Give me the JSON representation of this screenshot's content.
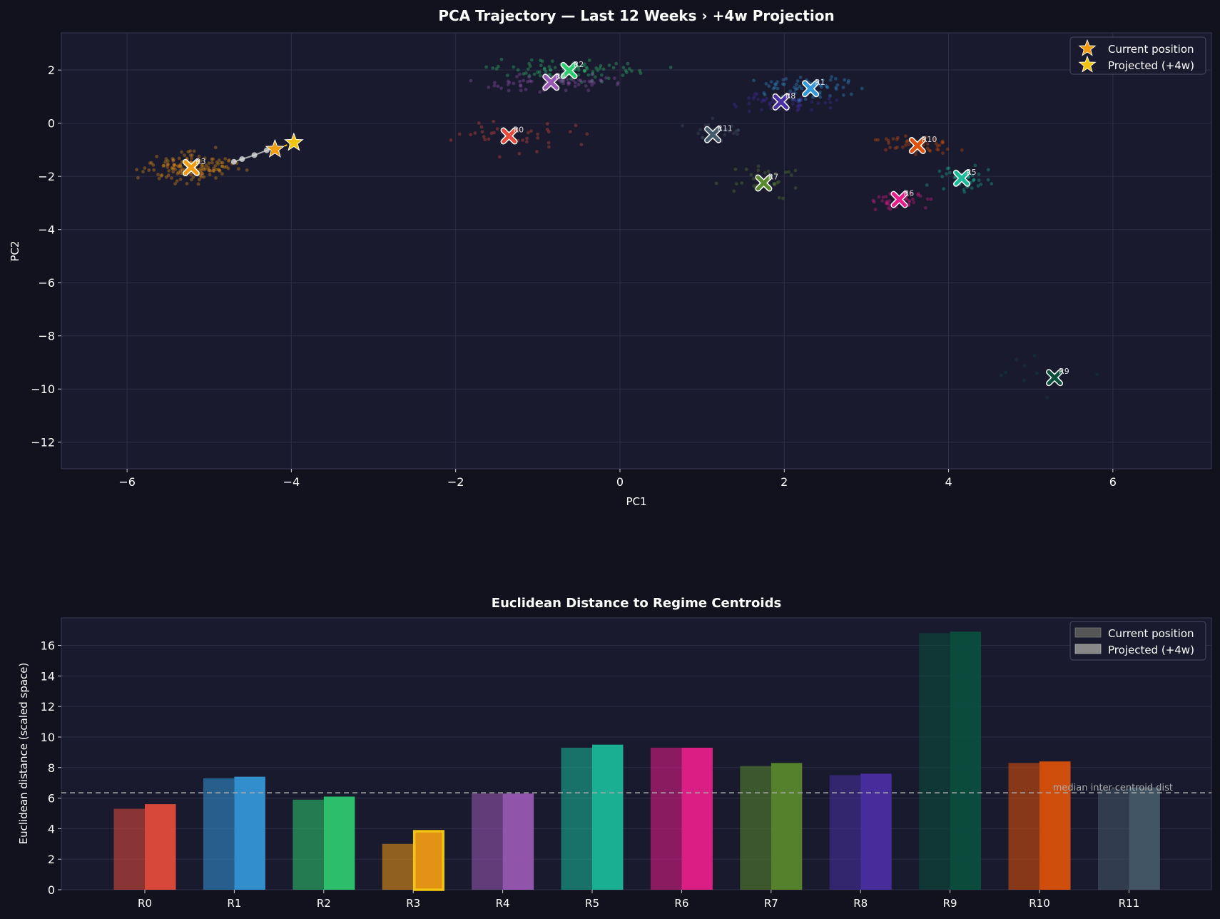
{
  "colors": {
    "figure_bg": "#12121e",
    "axes_bg": "#1a1a2e",
    "grid": "#2c2c44",
    "spine": "#3a3a55",
    "text": "#ffffff",
    "tick_text": "#ffffff",
    "star_current": "#f39c12",
    "star_projected": "#f1c40f",
    "trajectory": "#cccccc",
    "median_line": "#aaaaaa"
  },
  "scatter": {
    "title": "PCA Trajectory — Last 12 Weeks  ›  +4w Projection",
    "xlabel": "PC1",
    "ylabel": "PC2",
    "legend": {
      "current_label": "Current position",
      "projected_label": "Projected (+4w)",
      "placement": "top-right"
    }
  },
  "bar": {
    "title": "Euclidean Distance to Regime Centroids",
    "ylabel": "Euclidean distance (scaled space)",
    "median_label": "median inter-centroid dist",
    "legend": {
      "current_label": "Current position",
      "projected_label": "Projected (+4w)",
      "placement": "top-right"
    }
  },
  "chart_data": [
    {
      "type": "scatter",
      "title": "PCA Trajectory — Last 12 Weeks  ›  +4w Projection",
      "xlabel": "PC1",
      "ylabel": "PC2",
      "xlim": [
        -6.8,
        7.2
      ],
      "ylim": [
        -13.0,
        3.4
      ],
      "xticks": [
        -6,
        -4,
        -2,
        0,
        2,
        4,
        6
      ],
      "yticks": [
        -12,
        -10,
        -8,
        -6,
        -4,
        -2,
        0,
        2
      ],
      "grid": true,
      "centroids": [
        {
          "label": "R0",
          "x": -1.35,
          "y": -0.48,
          "color": "#e74c3c"
        },
        {
          "label": "R1",
          "x": 2.32,
          "y": 1.3,
          "color": "#3498db"
        },
        {
          "label": "R2",
          "x": -0.62,
          "y": 1.98,
          "color": "#2ecc71"
        },
        {
          "label": "R3",
          "x": -5.22,
          "y": -1.67,
          "color": "#f39c12"
        },
        {
          "label": "R4",
          "x": -0.84,
          "y": 1.54,
          "color": "#9b59b6"
        },
        {
          "label": "R5",
          "x": 4.16,
          "y": -2.07,
          "color": "#1abc9c"
        },
        {
          "label": "R6",
          "x": 3.4,
          "y": -2.87,
          "color": "#e91e8c"
        },
        {
          "label": "R7",
          "x": 1.75,
          "y": -2.25,
          "color": "#5a8a2e"
        },
        {
          "label": "R8",
          "x": 1.96,
          "y": 0.8,
          "color": "#4b2fa6"
        },
        {
          "label": "R9",
          "x": 5.29,
          "y": -9.57,
          "color": "#0a4f3e"
        },
        {
          "label": "R10",
          "x": 3.62,
          "y": -0.84,
          "color": "#e0520a"
        },
        {
          "label": "R11",
          "x": 1.13,
          "y": -0.43,
          "color": "#455a6a"
        }
      ],
      "trajectory": {
        "x": [
          -4.7,
          -4.6,
          -4.45,
          -4.3,
          -4.2
        ],
        "y": [
          -1.45,
          -1.35,
          -1.2,
          -1.02,
          -0.9
        ]
      },
      "current": {
        "x": -4.2,
        "y": -0.98
      },
      "projected": {
        "x": -3.97,
        "y": -0.73
      },
      "legend": [
        "Current position",
        "Projected (+4w)"
      ]
    },
    {
      "type": "bar",
      "title": "Euclidean Distance to Regime Centroids",
      "ylabel": "Euclidean distance (scaled space)",
      "categories": [
        "R0",
        "R1",
        "R2",
        "R3",
        "R4",
        "R5",
        "R6",
        "R7",
        "R8",
        "R9",
        "R10",
        "R11"
      ],
      "series": [
        {
          "name": "Current position",
          "values": [
            5.3,
            7.3,
            5.9,
            3.0,
            6.3,
            9.3,
            9.3,
            8.1,
            7.5,
            16.8,
            8.3,
            6.6
          ]
        },
        {
          "name": "Projected (+4w)",
          "values": [
            5.6,
            7.4,
            6.1,
            3.9,
            6.3,
            9.5,
            9.3,
            8.3,
            7.6,
            16.9,
            8.4,
            6.7
          ]
        }
      ],
      "bar_colors": [
        "#e74c3c",
        "#3498db",
        "#2ecc71",
        "#f39c12",
        "#9b59b6",
        "#1abc9c",
        "#e91e8c",
        "#5a8a2e",
        "#4b2fa6",
        "#0a4f3e",
        "#e0520a",
        "#455a6a"
      ],
      "highlight_category": "R3",
      "highlight_color": "#f1c40f",
      "median_inter_centroid": 6.35,
      "median_label": "median inter-centroid dist",
      "ylim": [
        0,
        17.8
      ],
      "yticks": [
        0,
        2,
        4,
        6,
        8,
        10,
        12,
        14,
        16
      ],
      "grid": true,
      "legend": [
        "Current position",
        "Projected (+4w)"
      ]
    }
  ]
}
